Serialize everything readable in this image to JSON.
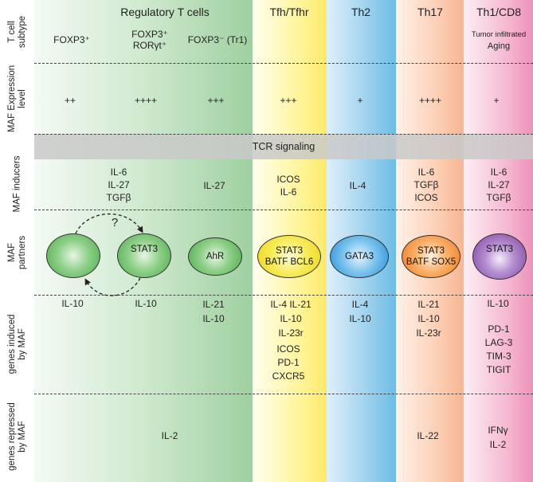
{
  "columns": {
    "treg": {
      "header": "Regulatory T cells",
      "subtypes": [
        "FOXP3⁺",
        "FOXP3⁺",
        "RORγt⁺",
        "FOXP3⁻ (Tr1)"
      ]
    },
    "tfh": {
      "header": "Tfh/Tfhr"
    },
    "th2": {
      "header": "Th2"
    },
    "th17": {
      "header": "Th17"
    },
    "th1": {
      "header": "Th1/CD8",
      "subtype_line1": "Tumor infiltrated",
      "subtype_line2": "Aging"
    }
  },
  "row_labels": {
    "subtype": [
      "T cell",
      "subtype"
    ],
    "expression": [
      "MAF Expression",
      "level"
    ],
    "inducers": [
      "MAF inducers"
    ],
    "partners": [
      "MAF",
      "partners"
    ],
    "induced": [
      "genes induced",
      "by MAF"
    ],
    "repressed": [
      "genes repressed",
      "by MAF"
    ]
  },
  "expression": [
    "++",
    "++++",
    "+++",
    "+++",
    "+",
    "++++",
    "+"
  ],
  "tcr_label": "TCR signaling",
  "inducers": {
    "treg_foxp3_rorgt": [
      "IL-6",
      "IL-27",
      "TGFβ"
    ],
    "treg_tr1": [
      "IL-27"
    ],
    "tfh": [
      "ICOS",
      "IL-6"
    ],
    "th2": [
      "IL-4"
    ],
    "th17": [
      "IL-6",
      "TGFβ",
      "ICOS"
    ],
    "th1": [
      "IL-6",
      "IL-27",
      "TGFβ"
    ]
  },
  "partners": {
    "question": "?",
    "treg_rorgt": "STAT3",
    "treg_tr1": "AhR",
    "tfh_line1": "STAT3",
    "tfh_line2": "BATF BCL6",
    "th2": "GATA3",
    "th17_line1": "STAT3",
    "th17_line2": "BATF SOX5",
    "th1": "STAT3"
  },
  "colors": {
    "green": "#5fb55f",
    "yellow": "#f5e43a",
    "blue": "#2e9ad8",
    "orange": "#f3862a",
    "purple": "#8a4fa8"
  },
  "induced": {
    "treg_foxp3": [
      "IL-10"
    ],
    "treg_rorgt": [
      "IL-10"
    ],
    "treg_tr1": [
      "IL-21",
      "IL-10"
    ],
    "tfh_top": [
      "IL-4 IL-21",
      "IL-10",
      "IL-23r"
    ],
    "tfh_bottom": [
      "ICOS",
      "PD-1",
      "CXCR5"
    ],
    "th2": [
      "IL-4",
      "IL-10"
    ],
    "th17": [
      "IL-21",
      "IL-10",
      "IL-23r"
    ],
    "th1_top": [
      "IL-10"
    ],
    "th1_bottom": [
      "PD-1",
      "LAG-3",
      "TIM-3",
      "TIGIT"
    ]
  },
  "repressed": {
    "treg": "IL-2",
    "th17": "IL-22",
    "th1_line1": "IFNγ",
    "th1_line2": "IL-2"
  }
}
